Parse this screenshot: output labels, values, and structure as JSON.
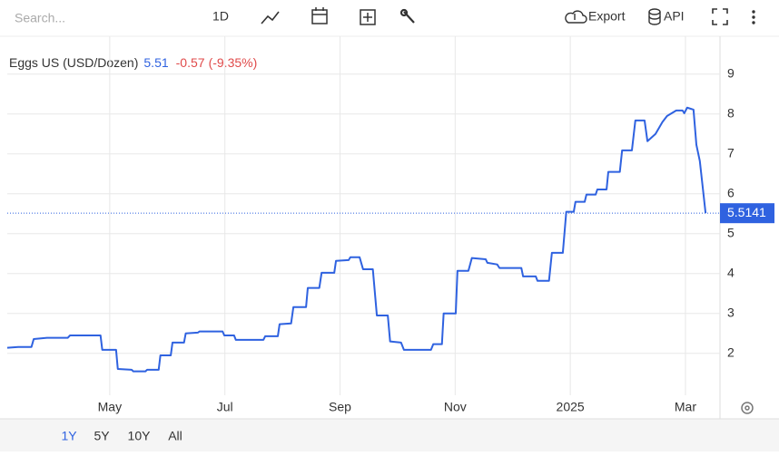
{
  "toolbar": {
    "search": "Search...",
    "interval": "1D",
    "export": "Export",
    "api": "API"
  },
  "ranges": [
    "1Y",
    "5Y",
    "10Y",
    "All"
  ],
  "chart_data": {
    "type": "line",
    "title": "Eggs US (USD/Dozen)",
    "price": "5.51",
    "change": "-0.57",
    "change_pct": "(-9.35%)",
    "x": [
      2.22,
      2.41,
      2.64,
      2.68,
      2.91,
      3.27,
      3.31,
      3.84,
      3.87,
      4.11,
      4.14,
      4.38,
      4.41,
      4.62,
      4.65,
      4.85,
      4.88,
      5.06,
      5.09,
      5.29,
      5.32,
      5.53,
      5.56,
      5.96,
      5.99,
      6.16,
      6.19,
      6.67,
      6.7,
      6.92,
      6.95,
      7.15,
      7.19,
      7.41,
      7.44,
      7.64,
      7.68,
      7.9,
      7.93,
      8.15,
      8.18,
      8.34,
      8.4,
      8.57,
      8.64,
      8.83,
      8.87,
      9.06,
      9.11,
      9.58,
      9.62,
      9.77,
      9.8,
      10.01,
      10.04,
      10.23,
      10.29,
      10.53,
      10.56,
      10.73,
      10.77,
      11.15,
      11.18,
      11.4,
      11.43,
      11.63,
      11.68,
      11.87,
      11.93,
      12.06,
      12.09,
      12.25,
      12.28,
      12.44,
      12.47,
      12.63,
      12.66,
      12.86,
      12.9,
      13.07,
      13.13,
      13.29,
      13.34,
      13.48,
      13.6,
      13.68,
      13.84,
      13.95,
      13.98,
      14.03,
      14.14,
      14.19,
      14.25,
      14.35
    ],
    "series": [
      {
        "name": "Eggs US (USD/Dozen)",
        "color": "#2f62e0",
        "values": [
          2.14,
          2.16,
          2.16,
          2.36,
          2.39,
          2.39,
          2.45,
          2.45,
          2.09,
          2.09,
          1.61,
          1.59,
          1.55,
          1.55,
          1.59,
          1.59,
          1.95,
          1.95,
          2.27,
          2.27,
          2.5,
          2.52,
          2.55,
          2.55,
          2.45,
          2.45,
          2.34,
          2.34,
          2.43,
          2.43,
          2.73,
          2.75,
          3.16,
          3.16,
          3.64,
          3.64,
          4.02,
          4.02,
          4.32,
          4.34,
          4.41,
          4.41,
          4.11,
          4.11,
          2.95,
          2.95,
          2.3,
          2.27,
          2.09,
          2.09,
          2.23,
          2.23,
          3.0,
          3.0,
          4.07,
          4.07,
          4.39,
          4.36,
          4.27,
          4.23,
          4.14,
          4.14,
          3.93,
          3.93,
          3.82,
          3.82,
          4.52,
          4.52,
          5.55,
          5.55,
          5.8,
          5.8,
          5.98,
          5.98,
          6.11,
          6.11,
          6.55,
          6.55,
          7.09,
          7.09,
          7.84,
          7.84,
          7.32,
          7.5,
          7.8,
          7.95,
          8.09,
          8.09,
          8.02,
          8.16,
          8.11,
          7.23,
          6.82,
          5.5141
        ]
      }
    ],
    "xlim": [
      2.22,
      14.6
    ],
    "xticks": [
      {
        "value": 4,
        "label": "May"
      },
      {
        "value": 6,
        "label": "Jul"
      },
      {
        "value": 8,
        "label": "Sep"
      },
      {
        "value": 10,
        "label": "Nov"
      },
      {
        "value": 12,
        "label": "2025"
      },
      {
        "value": 14,
        "label": "Mar"
      }
    ],
    "ylim": [
      0.95,
      9.95
    ],
    "yticks": [
      2,
      3,
      4,
      5,
      6,
      7,
      8,
      9
    ],
    "grid": true
  }
}
